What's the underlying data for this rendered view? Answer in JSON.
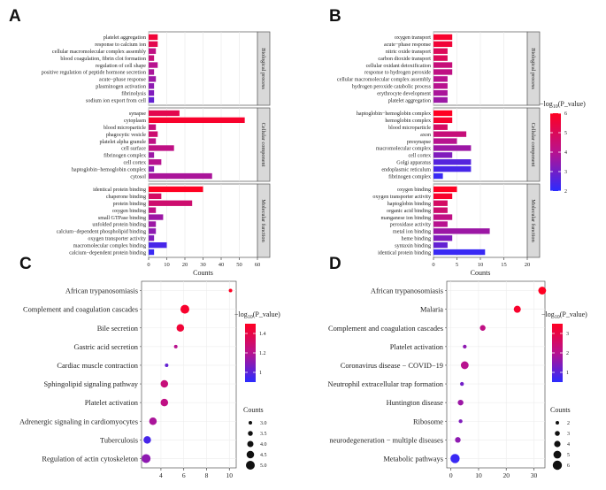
{
  "colors": {
    "high": "#FF0022",
    "mid": "#B8128F",
    "low": "#2B2BFF"
  },
  "chart_data": [
    {
      "panel": "A",
      "type": "bar",
      "orientation": "horizontal",
      "xlabel": "Counts",
      "xlim": [
        0,
        60
      ],
      "xticks": [
        0,
        10,
        20,
        30,
        40,
        50,
        60
      ],
      "groups": [
        {
          "name": "Biological process",
          "bars": [
            {
              "label": "platelet aggregation",
              "value": 5,
              "color": 0.9
            },
            {
              "label": "response to calcium ion",
              "value": 5,
              "color": 0.8
            },
            {
              "label": "cellular macromolecular complex assembly",
              "value": 4,
              "color": 0.55
            },
            {
              "label": "blood coagulation, fibrin clot formation",
              "value": 3,
              "color": 0.6
            },
            {
              "label": "regulation of cell shape",
              "value": 5,
              "color": 0.5
            },
            {
              "label": "positive regulation of peptide hormone secretion",
              "value": 3,
              "color": 0.45
            },
            {
              "label": "acute−phase response",
              "value": 4,
              "color": 0.4
            },
            {
              "label": "plasminogen activation",
              "value": 3,
              "color": 0.35
            },
            {
              "label": "fibrinolysis",
              "value": 3,
              "color": 0.3
            },
            {
              "label": "sodium ion export from cell",
              "value": 3,
              "color": 0.2
            }
          ]
        },
        {
          "name": "Cellular component",
          "bars": [
            {
              "label": "synapse",
              "value": 17,
              "color": 0.8
            },
            {
              "label": "cytoplasm",
              "value": 53,
              "color": 0.95
            },
            {
              "label": "blood microparticle",
              "value": 4,
              "color": 0.6
            },
            {
              "label": "phagocytic vesicle",
              "value": 5,
              "color": 0.65
            },
            {
              "label": "platelet alpha granule",
              "value": 4,
              "color": 0.55
            },
            {
              "label": "cell surface",
              "value": 14,
              "color": 0.55
            },
            {
              "label": "fibrinogen complex",
              "value": 3,
              "color": 0.4
            },
            {
              "label": "cell cortex",
              "value": 7,
              "color": 0.5
            },
            {
              "label": "haptoglobin−hemoglobin complex",
              "value": 3,
              "color": 0.35
            },
            {
              "label": "cytosol",
              "value": 35,
              "color": 0.45
            }
          ]
        },
        {
          "name": "Molecular function",
          "bars": [
            {
              "label": "identical protein binding",
              "value": 30,
              "color": 1.0
            },
            {
              "label": "chaperone binding",
              "value": 7,
              "color": 0.7
            },
            {
              "label": "protein binding",
              "value": 24,
              "color": 0.65
            },
            {
              "label": "oxygen binding",
              "value": 4,
              "color": 0.55
            },
            {
              "label": "small GTPase binding",
              "value": 8,
              "color": 0.4
            },
            {
              "label": "unfolded protein binding",
              "value": 4,
              "color": 0.4
            },
            {
              "label": "calcium−dependent phospholipid binding",
              "value": 4,
              "color": 0.35
            },
            {
              "label": "oxygen transporter activity",
              "value": 3,
              "color": 0.3
            },
            {
              "label": "macromolecular complex binding",
              "value": 10,
              "color": 0.1
            },
            {
              "label": "calcium−dependent protein binding",
              "value": 3,
              "color": 0.05
            }
          ]
        }
      ]
    },
    {
      "panel": "B",
      "type": "bar",
      "orientation": "horizontal",
      "xlabel": "Counts",
      "xlim": [
        0,
        20
      ],
      "xticks": [
        0,
        5,
        10,
        15,
        20
      ],
      "legend": {
        "title": "−log10(P_value)",
        "min": 2,
        "max": 6,
        "ticks": [
          6,
          5,
          4,
          3,
          2
        ]
      },
      "groups": [
        {
          "name": "Biological process",
          "bars": [
            {
              "label": "oxygen transport",
              "value": 4,
              "color": 0.95
            },
            {
              "label": "acute−phase response",
              "value": 4,
              "color": 0.9
            },
            {
              "label": "nitric oxide transport",
              "value": 3,
              "color": 0.75
            },
            {
              "label": "carbon dioxide transport",
              "value": 3,
              "color": 0.75
            },
            {
              "label": "cellular oxidant detoxification",
              "value": 4,
              "color": 0.6
            },
            {
              "label": "response to hydrogen peroxide",
              "value": 4,
              "color": 0.55
            },
            {
              "label": "cellular macromolecular complex assembly",
              "value": 3,
              "color": 0.5
            },
            {
              "label": "hydrogen peroxide catabolic process",
              "value": 3,
              "color": 0.5
            },
            {
              "label": "erythrocyte development",
              "value": 3,
              "color": 0.45
            },
            {
              "label": "platelet aggregation",
              "value": 3,
              "color": 0.4
            }
          ]
        },
        {
          "name": "Cellular component",
          "bars": [
            {
              "label": "haptoglobin−hemoglobin complex",
              "value": 4,
              "color": 1.0
            },
            {
              "label": "hemoglobin complex",
              "value": 4,
              "color": 0.95
            },
            {
              "label": "blood microparticle",
              "value": 3,
              "color": 0.7
            },
            {
              "label": "axon",
              "value": 7,
              "color": 0.6
            },
            {
              "label": "presynapse",
              "value": 5,
              "color": 0.5
            },
            {
              "label": "macromolecular complex",
              "value": 8,
              "color": 0.4
            },
            {
              "label": "cell cortex",
              "value": 4,
              "color": 0.3
            },
            {
              "label": "Golgi apparatus",
              "value": 8,
              "color": 0.15
            },
            {
              "label": "endoplasmic reticulum",
              "value": 8,
              "color": 0.1
            },
            {
              "label": "fibrinogen complex",
              "value": 2,
              "color": 0.05
            }
          ]
        },
        {
          "name": "Molecular function",
          "bars": [
            {
              "label": "oxygen binding",
              "value": 5,
              "color": 1.0
            },
            {
              "label": "oxygen transporter activity",
              "value": 4,
              "color": 0.95
            },
            {
              "label": "haptoglobin binding",
              "value": 3,
              "color": 0.7
            },
            {
              "label": "organic acid binding",
              "value": 3,
              "color": 0.65
            },
            {
              "label": "manganese ion binding",
              "value": 4,
              "color": 0.55
            },
            {
              "label": "peroxidase activity",
              "value": 3,
              "color": 0.5
            },
            {
              "label": "metal ion binding",
              "value": 12,
              "color": 0.4
            },
            {
              "label": "heme binding",
              "value": 4,
              "color": 0.3
            },
            {
              "label": "syntaxin binding",
              "value": 3,
              "color": 0.2
            },
            {
              "label": "identical protein binding",
              "value": 11,
              "color": 0.05
            }
          ]
        }
      ]
    },
    {
      "panel": "C",
      "type": "scatter",
      "xlim": [
        2.3,
        10.6
      ],
      "xticks": [
        4,
        6,
        8,
        10
      ],
      "legend": {
        "title": "−log10(P_value)",
        "min": 0.9,
        "max": 1.5,
        "ticks": [
          1.4,
          1.2,
          1.0
        ],
        "size_title": "Counts",
        "size_ticks": [
          "3.0",
          "3.5",
          "4.0",
          "4.5",
          "5.0"
        ]
      },
      "points": [
        {
          "label": "African trypanosomiasis",
          "x": 10.1,
          "count": 3,
          "color": 1.0
        },
        {
          "label": "Complement and coagulation cascades",
          "x": 6.1,
          "count": 5,
          "color": 0.95
        },
        {
          "label": "Bile secretion",
          "x": 5.7,
          "count": 4.5,
          "color": 0.9
        },
        {
          "label": "Gastric acid secretion",
          "x": 5.3,
          "count": 3,
          "color": 0.5
        },
        {
          "label": "Cardiac muscle contraction",
          "x": 4.5,
          "count": 3,
          "color": 0.2
        },
        {
          "label": "Sphingolipid signaling pathway",
          "x": 4.3,
          "count": 4.5,
          "color": 0.6
        },
        {
          "label": "Platelet activation",
          "x": 4.3,
          "count": 4.5,
          "color": 0.55
        },
        {
          "label": "Adrenergic signaling in cardiomyocytes",
          "x": 3.3,
          "count": 4.5,
          "color": 0.45
        },
        {
          "label": "Tuberculosis",
          "x": 2.8,
          "count": 4.5,
          "color": 0.1
        },
        {
          "label": "Regulation of actin cytoskeleton",
          "x": 2.7,
          "count": 5,
          "color": 0.35
        }
      ]
    },
    {
      "panel": "D",
      "type": "scatter",
      "xlim": [
        -1.5,
        34
      ],
      "xticks": [
        0,
        10,
        20,
        30
      ],
      "legend": {
        "title": "−log10(P_value)",
        "min": 0.5,
        "max": 3.5,
        "ticks": [
          3,
          2,
          1
        ],
        "size_title": "Counts",
        "size_ticks": [
          "2",
          "3",
          "4",
          "5",
          "6"
        ]
      },
      "points": [
        {
          "label": "African trypanosomiasis",
          "x": 33,
          "count": 5,
          "color": 1.0
        },
        {
          "label": "Malaria",
          "x": 24,
          "count": 4.5,
          "color": 0.95
        },
        {
          "label": "Complement and coagulation cascades",
          "x": 11.5,
          "count": 3.5,
          "color": 0.55
        },
        {
          "label": "Platelet activation",
          "x": 5,
          "count": 2.2,
          "color": 0.35
        },
        {
          "label": "Coronavirus disease − COVID−19",
          "x": 5,
          "count": 5,
          "color": 0.5
        },
        {
          "label": "Neutrophil extracellular trap formation",
          "x": 4,
          "count": 2.2,
          "color": 0.25
        },
        {
          "label": "Huntington disease",
          "x": 3.5,
          "count": 3.5,
          "color": 0.4
        },
        {
          "label": "Ribosome",
          "x": 3.5,
          "count": 2.2,
          "color": 0.3
        },
        {
          "label": "neurodegeneration − multiple diseases",
          "x": 2.5,
          "count": 3.5,
          "color": 0.35
        },
        {
          "label": "Metabolic pathways",
          "x": 1.5,
          "count": 6,
          "color": 0.05
        }
      ]
    }
  ]
}
